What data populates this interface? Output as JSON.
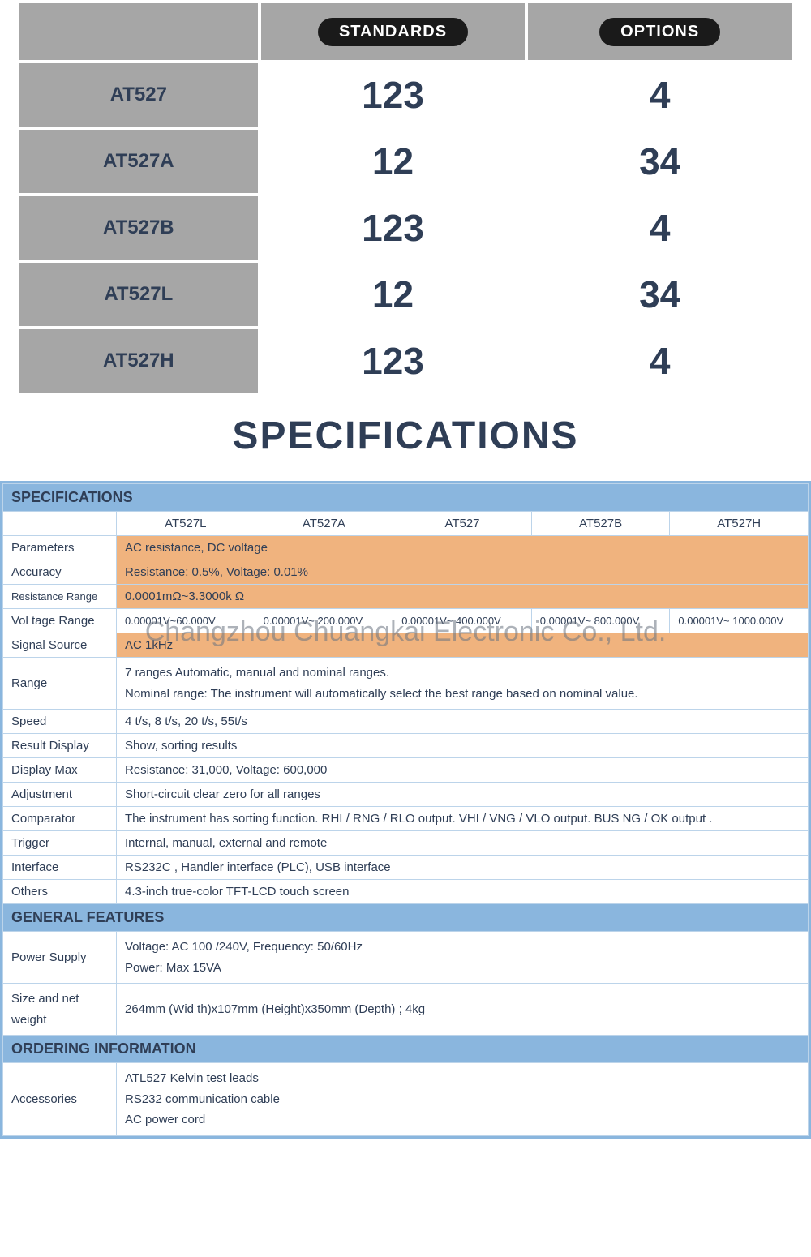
{
  "colors": {
    "text": "#2f3e56",
    "grey": "#a6a6a6",
    "pill_bg": "#1a1a1a",
    "pill_fg": "#ffffff",
    "blue_hdr": "#8ab6de",
    "border": "#bcd4ea",
    "highlight": "#f0b37e",
    "white": "#ffffff"
  },
  "typography": {
    "big_num_size": 46,
    "model_name_size": 24,
    "section_title_size": 48,
    "spec_font_size": 15
  },
  "model_table": {
    "type": "table",
    "columns": [
      "",
      "STANDARDS",
      "OPTIONS"
    ],
    "pill_labels": {
      "standards": "STANDARDS",
      "options": "OPTIONS"
    },
    "rows": [
      {
        "model": "AT527",
        "standards": "123",
        "options": "4"
      },
      {
        "model": "AT527A",
        "standards": "12",
        "options": "34"
      },
      {
        "model": "AT527B",
        "standards": "123",
        "options": "4"
      },
      {
        "model": "AT527L",
        "standards": "12",
        "options": "34"
      },
      {
        "model": "AT527H",
        "standards": "123",
        "options": "4"
      }
    ],
    "cell_bg": "#a6a6a6",
    "num_bg": "#ffffff"
  },
  "section_title": "SPECIFICATIONS",
  "watermark": "Changzhou Chuangkai Electronic Co., Ltd.",
  "spec": {
    "type": "table",
    "title": "SPECIFICATIONS",
    "model_headers": [
      "AT527L",
      "AT527A",
      "AT527",
      "AT527B",
      "AT527H"
    ],
    "rows": {
      "parameters": {
        "label": "Parameters",
        "value": "AC resistance, DC voltage",
        "highlight": true
      },
      "accuracy": {
        "label": "Accuracy",
        "value": "Resistance: 0.5%, Voltage: 0.01%",
        "highlight": true
      },
      "resistance_range": {
        "label": "Resistance Range",
        "value": "0.0001mΩ~3.3000k Ω",
        "highlight": true,
        "label_small": true
      },
      "voltage_range": {
        "label": "Vol tage Range",
        "values": [
          "0.00001V~60.000V",
          "0.00001V~ 200.000V",
          "0.00001V~ 400.000V",
          "0.00001V~ 800.000V",
          "0.00001V~ 1000.000V"
        ]
      },
      "signal_source": {
        "label": "Signal Source",
        "value": "AC 1kHz",
        "highlight": true
      },
      "range": {
        "label": "Range",
        "value": "7 ranges Automatic, manual and nominal ranges.\nNominal range: The instrument will automatically select the best range based on  nominal value."
      },
      "speed": {
        "label": "Speed",
        "value": "4 t/s, 8 t/s, 20 t/s, 55t/s"
      },
      "result_display": {
        "label": "Result Display",
        "value": "Show, sorting results"
      },
      "display_max": {
        "label": "Display Max",
        "value": "Resistance: 31,000, Voltage: 600,000"
      },
      "adjustment": {
        "label": "Adjustment",
        "value": "Short-circuit clear zero for all ranges"
      },
      "comparator": {
        "label": "Comparator",
        "value": "The instrument has  sorting function. RHI / RNG / RLO output. VHI / VNG / VLO output.     BUS NG / OK output ."
      },
      "trigger": {
        "label": "Trigger",
        "value": "Internal, manual, external and remote"
      },
      "interface": {
        "label": "Interface",
        "value": "RS232C , Handler interface (PLC), USB interface"
      },
      "others": {
        "label": "Others",
        "value": "4.3-inch true-color TFT-LCD touch screen"
      }
    },
    "general_features": {
      "title": "GENERAL FEATURES",
      "power_supply": {
        "label": "Power Supply",
        "value": "Voltage: AC 100 /240V, Frequency: 50/60Hz\nPower: Max 15VA"
      },
      "size_weight": {
        "label": "Size and net weight",
        "value": "264mm (Wid th)x107mm (Height)x350mm (Depth) ; 4kg"
      }
    },
    "ordering": {
      "title": "ORDERING INFORMATION",
      "accessories": {
        "label": "Accessories",
        "value": "ATL527 Kelvin test leads\nRS232 communication cable\nAC power cord"
      }
    }
  }
}
